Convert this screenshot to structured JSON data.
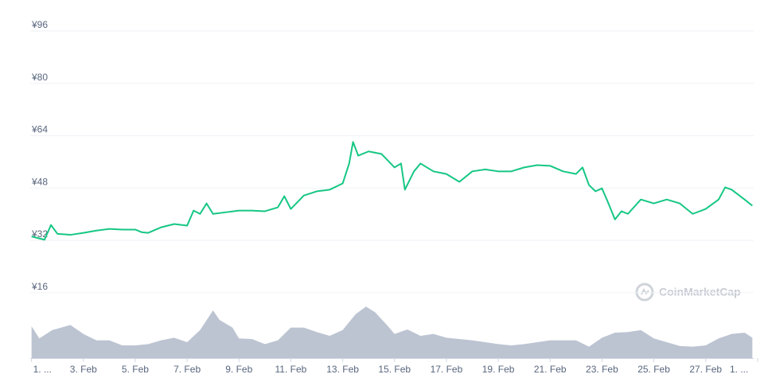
{
  "chart_data": {
    "type": "line",
    "watermark": "CoinMarketCap",
    "ylim": [
      -4,
      96
    ],
    "yticks": [
      {
        "value": 16,
        "label": "¥16"
      },
      {
        "value": 32,
        "label": "¥32"
      },
      {
        "value": 48,
        "label": "¥48"
      },
      {
        "value": 64,
        "label": "¥64"
      },
      {
        "value": 80,
        "label": "¥80"
      },
      {
        "value": 96,
        "label": "¥96"
      }
    ],
    "y2lim": [
      0,
      100
    ],
    "xlim": [
      -0.05,
      27.85
    ],
    "xticks": [
      {
        "value": 0,
        "label": "1. ..."
      },
      {
        "value": 2,
        "label": "3. Feb"
      },
      {
        "value": 4,
        "label": "5. Feb"
      },
      {
        "value": 6,
        "label": "7. Feb"
      },
      {
        "value": 8,
        "label": "9. Feb"
      },
      {
        "value": 10,
        "label": "11. Feb"
      },
      {
        "value": 12,
        "label": "13. Feb"
      },
      {
        "value": 14,
        "label": "15. Feb"
      },
      {
        "value": 16,
        "label": "17. Feb"
      },
      {
        "value": 18,
        "label": "19. Feb"
      },
      {
        "value": 20,
        "label": "21. Feb"
      },
      {
        "value": 22,
        "label": "23. Feb"
      },
      {
        "value": 24,
        "label": "25. Feb"
      },
      {
        "value": 26,
        "label": "27. Feb"
      },
      {
        "value": 28,
        "label": "1. ..."
      }
    ],
    "grid": true,
    "series": [
      {
        "type": "line",
        "color": "#16c784",
        "x": [
          0,
          0.5,
          0.75,
          1,
          1.5,
          2,
          2.5,
          3,
          3.5,
          4,
          4.25,
          4.5,
          5,
          5.5,
          6,
          6.25,
          6.5,
          6.75,
          7,
          7.5,
          8,
          8.5,
          9,
          9.5,
          9.75,
          10,
          10.5,
          11,
          11.5,
          12,
          12.25,
          12.4,
          12.6,
          13,
          13.5,
          14,
          14.25,
          14.4,
          14.75,
          15,
          15.5,
          16,
          16.5,
          17,
          17.5,
          18,
          18.5,
          19,
          19.5,
          20,
          20.5,
          21,
          21.25,
          21.5,
          21.75,
          22,
          22.25,
          22.5,
          22.75,
          23,
          23.5,
          24,
          24.5,
          25,
          25.5,
          26,
          26.5,
          26.75,
          27,
          27.5,
          27.8
        ],
        "values": [
          33.2,
          32.2,
          36.7,
          34,
          33.7,
          34.3,
          35,
          35.5,
          35.3,
          35.3,
          34.5,
          34.3,
          36,
          37,
          36.5,
          41.1,
          40.1,
          43.3,
          40.1,
          40.6,
          41.1,
          41.1,
          40.9,
          42.1,
          45.5,
          41.6,
          45.7,
          47,
          47.5,
          49.4,
          55.5,
          62.1,
          57.9,
          59.2,
          58.4,
          54.3,
          55.5,
          47.5,
          53.1,
          55.5,
          53.1,
          52.3,
          49.9,
          53.1,
          53.7,
          53.1,
          53.1,
          54.3,
          55,
          54.8,
          53.1,
          52.3,
          54.3,
          48.9,
          47,
          47.9,
          43.3,
          38.4,
          40.9,
          40.1,
          44.5,
          43.3,
          44.5,
          43.3,
          40.1,
          41.6,
          44.5,
          48.2,
          47.5,
          44.5,
          42.6
        ]
      },
      {
        "type": "area",
        "axis": "y2",
        "color": "#a6b0c3",
        "x": [
          0,
          0.3,
          0.8,
          1.5,
          2,
          2.5,
          3,
          3.5,
          4,
          4.5,
          5,
          5.5,
          6,
          6.5,
          7,
          7.25,
          7.75,
          8,
          8.5,
          9,
          9.5,
          10,
          10.5,
          11,
          11.5,
          12,
          12.5,
          12.9,
          13.25,
          13.75,
          14,
          14.5,
          15,
          15.5,
          16,
          16.5,
          17,
          17.5,
          18,
          18.5,
          19,
          19.5,
          20,
          20.5,
          21,
          21.5,
          22,
          22.5,
          23,
          23.5,
          24,
          24.5,
          25,
          25.5,
          26,
          26.5,
          27,
          27.5,
          27.8
        ],
        "values": [
          50,
          31,
          44,
          52,
          38,
          28,
          28,
          20,
          20,
          22,
          28,
          32,
          25,
          44,
          75,
          60,
          48,
          31,
          30,
          22,
          28,
          48,
          48,
          41,
          35,
          44,
          69,
          81,
          72,
          50,
          38,
          45,
          35,
          38,
          32,
          30,
          28,
          25,
          22,
          20,
          22,
          25,
          28,
          28,
          28,
          18,
          32,
          40,
          41,
          44,
          31,
          25,
          19,
          18,
          20,
          31,
          38,
          40,
          32
        ]
      }
    ]
  }
}
